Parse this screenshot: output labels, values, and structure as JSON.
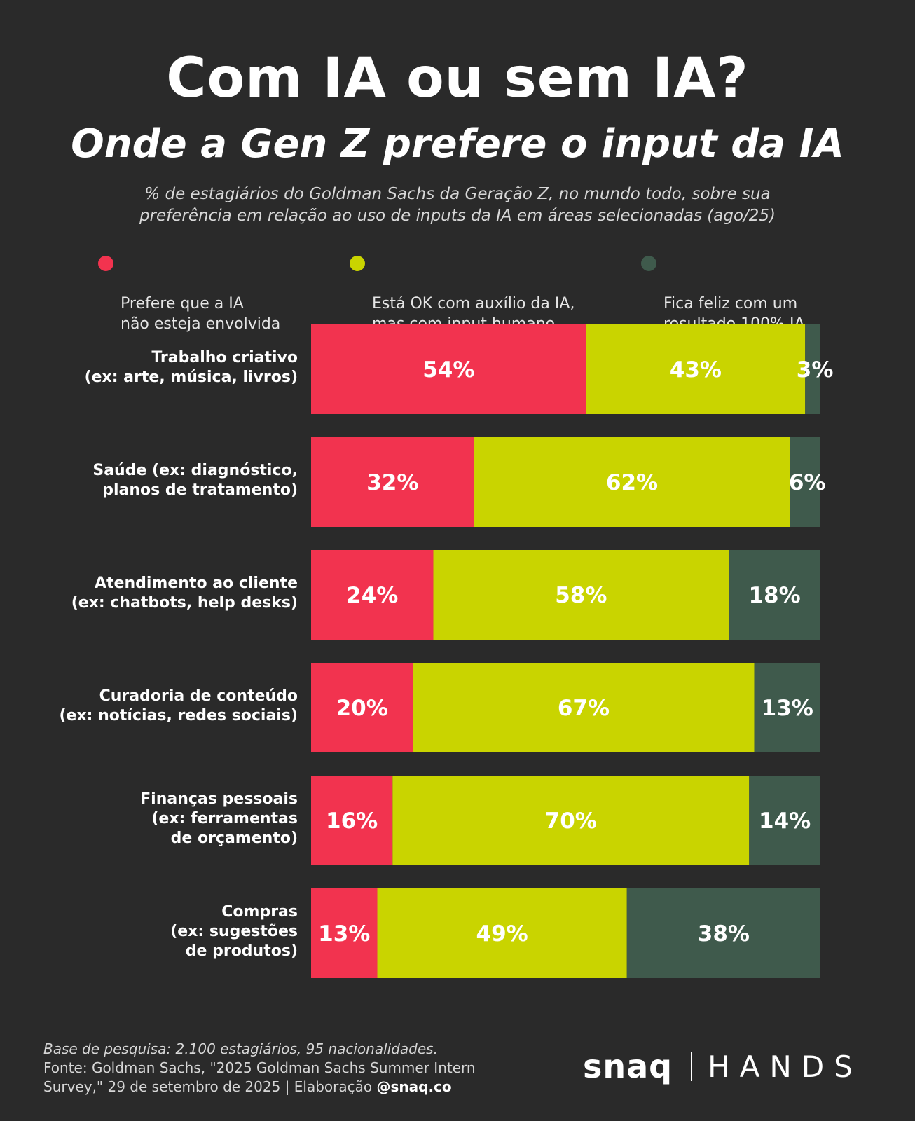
{
  "title": "Com IA ou sem IA?",
  "subtitle": "Onde a Gen Z prefere o input da IA",
  "description": "% de estagiários do Goldman Sachs da Geração Z, no mundo todo, sobre sua\npreferência em relação ao uso de inputs da IA em áreas selecionadas (ago/25)",
  "colors": {
    "background": "#2a2a2a",
    "red": "#f2334f",
    "lime": "#c9d400",
    "gray": "#3f5a4c"
  },
  "chart_data": {
    "type": "bar",
    "orientation": "horizontal",
    "stacked": true,
    "unit": "%",
    "xlim": [
      0,
      100
    ],
    "categories": [
      "Trabalho criativo\n(ex: arte, música, livros)",
      "Saúde (ex: diagnóstico,\nplanos de tratamento)",
      "Atendimento ao cliente\n(ex: chatbots, help desks)",
      "Curadoria de conteúdo\n(ex: notícias, redes sociais)",
      "Finanças pessoais\n(ex: ferramentas\nde orçamento)",
      "Compras\n(ex: sugestões\nde produtos)"
    ],
    "series": [
      {
        "name": "Prefere que a IA\nnão esteja envolvida",
        "color": "#f2334f",
        "values": [
          54,
          32,
          24,
          20,
          16,
          13
        ]
      },
      {
        "name": "Está OK com auxílio da IA,\nmas com input humano",
        "color": "#c9d400",
        "values": [
          43,
          62,
          58,
          67,
          70,
          49
        ]
      },
      {
        "name": "Fica feliz com um\nresultado 100% IA",
        "color": "#3f5a4c",
        "values": [
          3,
          6,
          18,
          13,
          14,
          38
        ]
      }
    ],
    "labels": [
      [
        "54%",
        "43%",
        "3%"
      ],
      [
        "32%",
        "62%",
        "6%"
      ],
      [
        "24%",
        "58%",
        "18%"
      ],
      [
        "20%",
        "67%",
        "13%"
      ],
      [
        "16%",
        "70%",
        "14%"
      ],
      [
        "13%",
        "49%",
        "38%"
      ]
    ]
  },
  "footnote": {
    "base": "Base de pesquisa: 2.100 estagiários, 95 nacionalidades.",
    "source": "Fonte: Goldman Sachs, \"2025 Goldman Sachs Summer Intern Survey,\" 29 de setembro de 2025 | Elaboração ",
    "handle": "@snaq.co"
  },
  "brand": {
    "snaq": "snaq",
    "hands": "HANDS"
  }
}
